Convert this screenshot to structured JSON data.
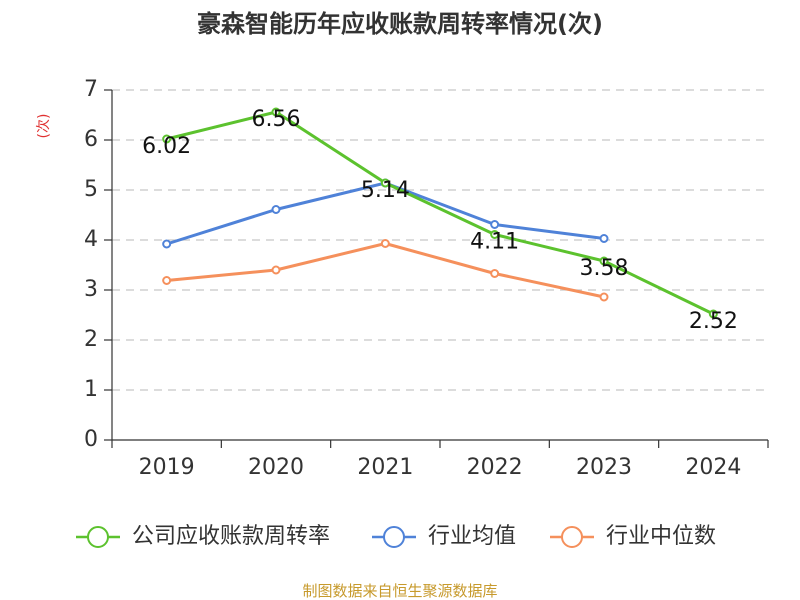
{
  "chart_data": {
    "type": "line",
    "title": "豪森智能历年应收账款周转率情况(次)",
    "ylabel": "(次)",
    "categories": [
      "2019",
      "2020",
      "2021",
      "2022",
      "2023",
      "2024"
    ],
    "ylim": [
      0,
      7
    ],
    "yticks": [
      "0",
      "1",
      "2",
      "3",
      "4",
      "5",
      "6",
      "7"
    ],
    "grid": true,
    "legend_position": "bottom",
    "series": [
      {
        "name": "公司应收账款周转率",
        "color": "#5cc22e",
        "values": [
          6.02,
          6.56,
          5.14,
          4.11,
          3.58,
          2.52
        ],
        "labels": [
          "6.02",
          "6.56",
          "5.14",
          "4.11",
          "3.58",
          "2.52"
        ]
      },
      {
        "name": "行业均值",
        "color": "#4f82d8",
        "values": [
          3.92,
          4.61,
          5.14,
          4.31,
          4.03,
          null
        ]
      },
      {
        "name": "行业中位数",
        "color": "#f5905c",
        "values": [
          3.19,
          3.4,
          3.93,
          3.33,
          2.86,
          null
        ]
      }
    ],
    "source": "制图数据来自恒生聚源数据库"
  }
}
